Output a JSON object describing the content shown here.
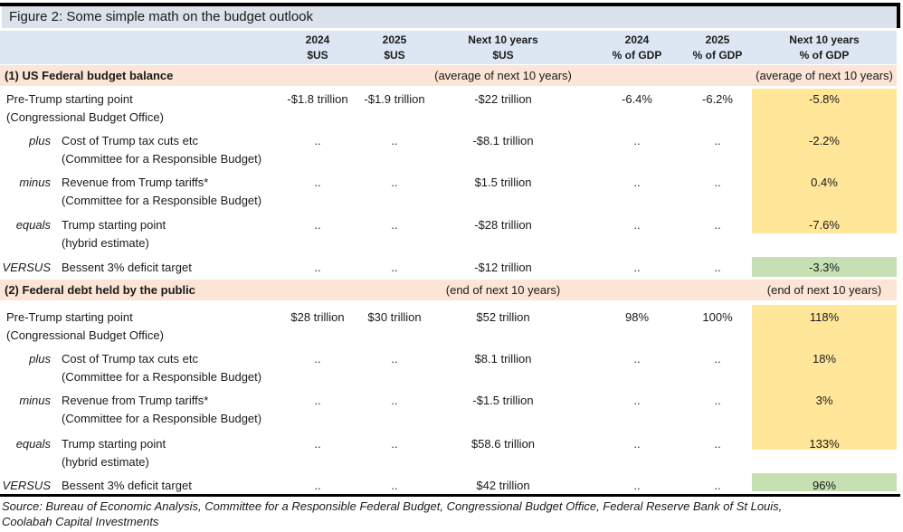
{
  "title": "Figure 2: Some simple math on the budget outlook",
  "columns": [
    {
      "line1": "2024",
      "line2": "$US"
    },
    {
      "line1": "2025",
      "line2": "$US"
    },
    {
      "line1": "Next 10 years",
      "line2": "$US"
    },
    {
      "line1": "2024",
      "line2": "% of GDP"
    },
    {
      "line1": "2025",
      "line2": "% of GDP"
    },
    {
      "line1": "Next 10 years",
      "line2": "% of GDP"
    }
  ],
  "sections": [
    {
      "heading": "(1) US Federal budget balance",
      "note_us": "(average of next 10 years)",
      "note_gdp": "(average of next 10 years)",
      "rows": [
        {
          "prefix": "",
          "label": "Pre-Trump starting point",
          "sublabel": "(Congressional Budget Office)",
          "values": [
            "-$1.8 trillion",
            "-$1.9 trillion",
            "-$22 trillion",
            "-6.4%",
            "-6.2%",
            "-5.8%"
          ]
        },
        {
          "prefix": "plus",
          "label": "Cost of Trump tax cuts etc",
          "sublabel": "(Committee for a Responsible Budget)",
          "values": [
            "..",
            "..",
            "-$8.1 trillion",
            "..",
            "..",
            "-2.2%"
          ]
        },
        {
          "prefix": "minus",
          "label": "Revenue from Trump tariffs*",
          "sublabel": "(Committee for a Responsible Budget)",
          "values": [
            "..",
            "..",
            "$1.5 trillion",
            "..",
            "..",
            "0.4%"
          ]
        },
        {
          "prefix": "equals",
          "label": "Trump starting point",
          "sublabel": "(hybrid estimate)",
          "values": [
            "..",
            "..",
            "-$28 trillion",
            "..",
            "..",
            "-7.6%"
          ]
        },
        {
          "prefix": "VERSUS",
          "label": "Bessent 3% deficit target",
          "sublabel": "",
          "values": [
            "..",
            "..",
            "-$12 trillion",
            "..",
            "..",
            "-3.3%"
          ]
        }
      ]
    },
    {
      "heading": "(2) Federal debt held by the public",
      "note_us": "(end of next 10 years)",
      "note_gdp": "(end of next 10 years)",
      "rows": [
        {
          "prefix": "",
          "label": "Pre-Trump starting point",
          "sublabel": "(Congressional Budget Office)",
          "values": [
            "$28 trillion",
            "$30 trillion",
            "$52 trillion",
            "98%",
            "100%",
            "118%"
          ]
        },
        {
          "prefix": "plus",
          "label": "Cost of Trump tax cuts etc",
          "sublabel": "(Committee for a Responsible Budget)",
          "values": [
            "..",
            "..",
            "$8.1 trillion",
            "..",
            "..",
            "18%"
          ]
        },
        {
          "prefix": "minus",
          "label": "Revenue from Trump tariffs*",
          "sublabel": "(Committee for a Responsible Budget)",
          "values": [
            "..",
            "..",
            "-$1.5 trillion",
            "..",
            "..",
            "3%"
          ]
        },
        {
          "prefix": "equals",
          "label": "Trump starting point",
          "sublabel": "(hybrid estimate)",
          "values": [
            "..",
            "..",
            "$58.6 trillion",
            "..",
            "..",
            "133%"
          ]
        },
        {
          "prefix": "VERSUS",
          "label": "Bessent 3% deficit target",
          "sublabel": "",
          "values": [
            "..",
            "..",
            "$42 trillion",
            "..",
            "..",
            "96%"
          ]
        }
      ]
    }
  ],
  "source_line1": "Source: Bureau of Economic Analysis, Committee for a Responsible Federal Budget, Congressional Budget Office, Federal Reserve Bank of St Louis,",
  "source_line2": "Coolabah Capital Investments",
  "colors": {
    "title_bar_bg": "#dce2ec",
    "header_bg": "#dce7f3",
    "section_bg": "#fce4d6",
    "highlight_yellow": "#ffe699",
    "highlight_green": "#c6e0b4",
    "border": "#000000"
  }
}
